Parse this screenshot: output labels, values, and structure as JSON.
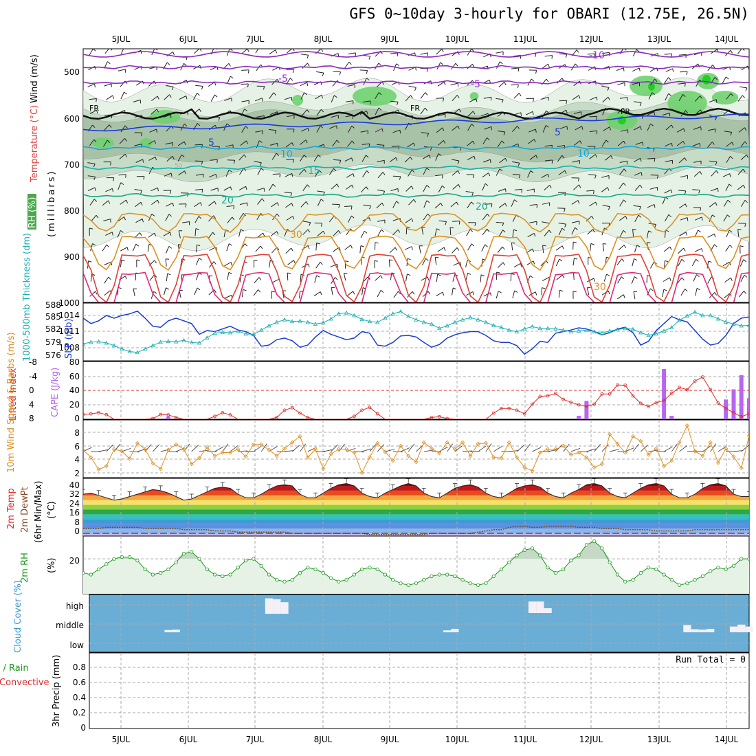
{
  "title": "GFS 0~10day 3-hourly for OBARI (12.75E, 26.5N)",
  "colors": {
    "red": "#e02828",
    "green": "#1a9a1a",
    "blue": "#1a3ad8",
    "cyan": "#17b0b0",
    "orange": "#e08f1e",
    "purple": "#9b30d8",
    "cloud": "#6aaed6"
  },
  "chart_data": [
    {
      "type": "contour",
      "title": "GFS 0~10day 3-hourly for OBARI (12.75E, 26.5N)",
      "xlabel": "Date",
      "x_categories": [
        "5JUL",
        "6JUL",
        "7JUL",
        "8JUL",
        "9JUL",
        "10JUL",
        "11JUL",
        "12JUL",
        "13JUL",
        "14JUL"
      ],
      "ylabel_parts": [
        "Wind (m/s)",
        "Temperature (°C)"
      ],
      "ylabel_unit": "(millibars)",
      "side_label": "RH (%)",
      "ylim": [
        1000,
        450
      ],
      "yticks": [
        500,
        600,
        700,
        800,
        900,
        1000
      ],
      "contour_labels": [
        "-10",
        "-5",
        "-5",
        "FR",
        "FR",
        "FR",
        "5",
        "5",
        "10",
        "10",
        "15",
        "20",
        "20",
        "30",
        "30",
        "50",
        "50",
        "50"
      ],
      "isotherms_c": [
        -10,
        -5,
        0,
        5,
        10,
        15,
        20,
        25,
        30,
        35,
        40
      ],
      "isotherm_base_mb": [
        523,
        490,
        595,
        625,
        665,
        708,
        768,
        815,
        870,
        915,
        960
      ]
    },
    {
      "type": "line",
      "ylabel_left": "1000-500mb Thickness (dm)",
      "ylabel_right": "SLP (mb)",
      "left_ticks": [
        "588",
        "585",
        "582",
        "579",
        "576"
      ],
      "right_ticks": [
        "1014",
        "1011",
        "1008"
      ],
      "series": [
        {
          "name": "SLP (mb)",
          "values": [
            1013.5,
            1012.5,
            1013,
            1014,
            1013.5,
            1014,
            1014.3,
            1014.8,
            1013.5,
            1012,
            1011.8,
            1013,
            1013.5,
            1013,
            1012.5,
            1010.5,
            1011.2,
            1011,
            1011.5,
            1012,
            1011.3,
            1011,
            1010.3,
            1008.3,
            1008.5,
            1009.5,
            1009.8,
            1009.3,
            1008.1,
            1008.5,
            1010,
            1011.2,
            1010.5,
            1010,
            1009.5,
            1009.8,
            1011,
            1010.7,
            1008.5,
            1008.3,
            1009,
            1010.2,
            1010.3,
            1010,
            1009,
            1008.1,
            1008.6,
            1009.8,
            1010.4,
            1010.8,
            1011,
            1011,
            1010.3,
            1009.3,
            1009,
            1009,
            1008.4,
            1006.8,
            1007.8,
            1009.2,
            1009,
            1010.7,
            1011,
            1011.3,
            1011.7,
            1011.5,
            1011,
            1010.4,
            1010.8,
            1011.5,
            1011.8,
            1010.8,
            1008.5,
            1009.2,
            1011.2,
            1012.5,
            1013.8,
            1013.2,
            1012.8,
            1011.2,
            1009.6,
            1008.5,
            1008.8,
            1010.3,
            1012.5,
            1013.5,
            1013.7
          ]
        },
        {
          "name": "1000-500mb Thickness (dm)",
          "values": [
            579.0,
            579.4,
            579.5,
            579.2,
            578.6,
            577.8,
            577.2,
            577.0,
            577.8,
            578.6,
            579.4,
            579.6,
            579.5,
            579.8,
            579.3,
            579.2,
            580.4,
            581.5,
            581.7,
            581.6,
            582.0,
            581.3,
            581.2,
            582.2,
            583.2,
            584.0,
            584.6,
            584.2,
            584.3,
            584.0,
            583.6,
            583.9,
            584.8,
            586.0,
            586.2,
            585.6,
            584.7,
            584.2,
            584.0,
            585.0,
            586.0,
            586.5,
            585.4,
            584.6,
            584.0,
            583.6,
            582.6,
            583.2,
            584.0,
            584.6,
            585.1,
            584.6,
            584.0,
            583.3,
            582.8,
            582.2,
            581.8,
            582.5,
            583.0,
            582.6,
            582.6,
            582.5,
            582.2,
            581.8,
            582.0,
            582.2,
            581.8,
            581.5,
            582.0,
            582.3,
            582.6,
            582.4,
            581.6,
            581.0,
            581.3,
            582.0,
            582.8,
            584.5,
            585.5,
            586.4,
            585.6,
            585.6,
            584.8,
            584.1,
            583.6,
            583.2,
            583.3
          ]
        }
      ]
    },
    {
      "type": "bar+line",
      "ylabel_left": "Lifted Index",
      "ylabel_right": "CAPE (J/kg)",
      "left_ticks": [
        "-8",
        "-4",
        "0",
        "4",
        "8"
      ],
      "right_ticks": [
        "80",
        "60",
        "40",
        "20",
        "0"
      ],
      "series": [
        {
          "name": "Lifted Index",
          "values": [
            6.7,
            6.5,
            6.2,
            6.7,
            8,
            8,
            8,
            8,
            8,
            7.8,
            6.7,
            6.8,
            7.5,
            8,
            8,
            8,
            8,
            7.2,
            6.2,
            6.8,
            8,
            8,
            8,
            8,
            8,
            7.5,
            5.5,
            4.8,
            6.3,
            7.5,
            8,
            8,
            8,
            8,
            8,
            7.2,
            5.5,
            4.7,
            6.5,
            8,
            8,
            8,
            8,
            8,
            8,
            7.5,
            7.3,
            7.8,
            8,
            8,
            8,
            8,
            8,
            6.3,
            5,
            5,
            5.5,
            6.5,
            3.8,
            1.7,
            1.5,
            0.9,
            2.5,
            3.3,
            4,
            4.5,
            3.8,
            1,
            1,
            -1.5,
            -1.4,
            1.5,
            3.6,
            4.5,
            3.4,
            2.8,
            0.8,
            -0.8,
            -0.2,
            -2.6,
            -3.7,
            -0.2,
            3.5,
            5,
            6.2,
            7.3,
            6.5
          ]
        },
        {
          "name": "CAPE (J/kg)",
          "values": [
            0,
            0,
            0,
            0,
            0,
            0,
            0,
            0,
            0,
            0,
            0,
            4,
            0,
            0,
            0,
            0,
            0,
            0,
            0,
            0,
            0,
            0,
            0,
            0,
            0,
            0,
            0,
            0,
            0,
            0,
            0,
            0,
            0,
            0,
            0,
            0,
            0,
            0,
            0,
            0,
            0,
            0,
            0,
            0,
            0,
            0,
            0,
            0,
            0,
            0,
            0,
            0,
            0,
            0,
            0,
            0,
            0,
            0,
            0,
            0,
            0,
            0,
            0,
            0,
            5,
            27,
            0,
            0,
            0,
            0,
            0,
            0,
            0,
            0,
            0,
            74,
            5,
            0,
            0,
            0,
            0,
            0,
            0,
            29,
            44,
            65,
            31
          ]
        }
      ]
    },
    {
      "type": "line",
      "ylabel": "10m Wind Speed & Barbs (m/s)",
      "yticks": [
        "8",
        "6",
        "4",
        "2"
      ],
      "series": [
        {
          "name": "10m Wind Speed (m/s)",
          "values": [
            5.4,
            4.3,
            2.5,
            3.0,
            5.5,
            5.2,
            4.1,
            6.4,
            5.5,
            3.4,
            2.6,
            5.4,
            6.2,
            5.5,
            3.3,
            4.2,
            5.8,
            4.5,
            5.0,
            5.0,
            5.5,
            4.4,
            6.2,
            6.2,
            5.4,
            4.5,
            5.6,
            6.5,
            7.4,
            4.3,
            5.5,
            2.6,
            4.8,
            5.5,
            5.5,
            5.0,
            2.0,
            4.3,
            6.4,
            5.1,
            3.8,
            6.0,
            4.5,
            3.6,
            6.5,
            5.6,
            4.9,
            6.5,
            5.5,
            6.5,
            4.5,
            6.3,
            6.4,
            4.3,
            4.2,
            6.5,
            4.3,
            2.8,
            2.3,
            5.0,
            5.5,
            5.5,
            6.0,
            4.7,
            5.0,
            4.3,
            2.8,
            3.3,
            7.7,
            6.3,
            5.0,
            7.4,
            6.7,
            4.7,
            5.6,
            3.0,
            3.8,
            6.5,
            9.0,
            5.2,
            4.5,
            6.5,
            3.5,
            5.6,
            4.4,
            2.7,
            7.5
          ]
        }
      ]
    },
    {
      "type": "area",
      "ylabel_parts": [
        "2m Temp",
        "2m DewPt",
        "(6hr Min/Max)"
      ],
      "unit": "(°C)",
      "yticks": [
        "40",
        "32",
        "24",
        "16",
        "8",
        "0"
      ],
      "series": [
        {
          "name": "2m Temp (°C)",
          "values": [
            33,
            34,
            32,
            30,
            28,
            29,
            31,
            33,
            35,
            37,
            36,
            34,
            31,
            28,
            29,
            32,
            35,
            38,
            39,
            38,
            33,
            30,
            30,
            33,
            37,
            40,
            41,
            40,
            33,
            30,
            30,
            34,
            38,
            41,
            42,
            40,
            34,
            31,
            30,
            34,
            37,
            40,
            42,
            40,
            34,
            31,
            30,
            34,
            38,
            40,
            41,
            39,
            34,
            31,
            30,
            34,
            38,
            40,
            41,
            39,
            34,
            31,
            30,
            34,
            37,
            41,
            42,
            40,
            34,
            31,
            30,
            34,
            38,
            41,
            42,
            40,
            33,
            30,
            30,
            33,
            38,
            41,
            42,
            40,
            33,
            31,
            31
          ]
        },
        {
          "name": "2m DewPt (°C)",
          "values": [
            4,
            4,
            4,
            5,
            5,
            5,
            5,
            5,
            4,
            4,
            4,
            4,
            4,
            3,
            3,
            3,
            3,
            2,
            2,
            2,
            1,
            1,
            1,
            1,
            1,
            1,
            1,
            0,
            0,
            0,
            0,
            0,
            0,
            0,
            0,
            0,
            0,
            -1,
            -1,
            -1,
            -1,
            -1,
            -1,
            -1,
            -1,
            0,
            0,
            0,
            0,
            0,
            0,
            1,
            2,
            3,
            3,
            5,
            6,
            6,
            5,
            5,
            6,
            6,
            6,
            6,
            5,
            5,
            5,
            4,
            4,
            4,
            3,
            3,
            3,
            3,
            2,
            2,
            2,
            2,
            2,
            3,
            3,
            3,
            3,
            3,
            3,
            3,
            3
          ]
        }
      ]
    },
    {
      "type": "area",
      "ylabel": "2m RH",
      "unit": "(%)",
      "yticks": [
        "20"
      ],
      "series": [
        {
          "name": "2m RH (%)",
          "values": [
            12,
            11,
            14,
            17,
            20,
            21,
            21,
            19,
            14,
            11,
            12,
            14,
            18,
            23,
            24,
            20,
            14,
            11,
            10,
            11,
            15,
            19,
            20,
            16,
            11,
            8,
            7,
            8,
            12,
            15,
            14,
            12,
            9,
            7,
            8,
            11,
            14,
            15,
            14,
            11,
            8,
            6,
            5,
            6,
            8,
            10,
            11,
            11,
            10,
            8,
            6,
            5,
            6,
            10,
            14,
            18,
            22,
            25,
            26,
            22,
            15,
            12,
            14,
            19,
            22,
            28,
            30,
            26,
            18,
            11,
            7,
            8,
            12,
            15,
            14,
            11,
            8,
            5,
            6,
            8,
            10,
            13,
            15,
            14,
            16,
            20,
            20
          ]
        }
      ]
    },
    {
      "type": "bar",
      "ylabel": "Cloud Cover (%)",
      "yticks": [
        "high",
        "middle",
        "low"
      ],
      "series": [
        {
          "name": "high cloud",
          "values": [
            0,
            0,
            0,
            0,
            0,
            0,
            0,
            0,
            0,
            0,
            0,
            0,
            0,
            0,
            0,
            0,
            0,
            0,
            0,
            0,
            0,
            0,
            0,
            0,
            80,
            75,
            60,
            0,
            0,
            0,
            0,
            0,
            0,
            0,
            0,
            0,
            0,
            0,
            0,
            0,
            0,
            0,
            0,
            0,
            0,
            0,
            0,
            0,
            0,
            0,
            0,
            0,
            0,
            0,
            0,
            0,
            0,
            0,
            0,
            0,
            0,
            0,
            0,
            0,
            0,
            0,
            0,
            0,
            0,
            0,
            0,
            0,
            0,
            0,
            0,
            0,
            0,
            0,
            0,
            0,
            0,
            0,
            0,
            0,
            0,
            0,
            0
          ]
        },
        {
          "name": "middle cloud",
          "values": [
            0,
            0,
            0,
            0,
            0,
            0,
            0,
            0,
            0,
            0,
            0,
            12,
            14,
            0,
            0,
            0,
            0,
            0,
            0,
            0,
            0,
            0,
            0,
            0,
            0,
            0,
            0,
            0,
            0,
            0,
            0,
            0,
            0,
            0,
            0,
            0,
            0,
            0,
            0,
            0,
            0,
            0,
            0,
            0,
            0,
            0,
            0,
            0,
            0,
            0,
            0,
            0,
            0,
            0,
            0,
            0,
            0,
            0,
            0,
            0,
            0,
            0,
            0,
            0,
            0,
            0,
            0,
            0,
            0,
            0,
            0,
            0,
            0,
            0,
            0,
            0,
            0,
            0,
            0,
            0,
            0,
            0,
            0,
            0,
            0,
            0,
            0
          ]
        }
      ]
    },
    {
      "type": "bar",
      "ylabel": "3hr Precip (mm)",
      "side_label": "Total / Rain",
      "side_label2": "Convective",
      "annotation": "Run Total = 0",
      "yticks": [
        "0.8",
        "0.6",
        "0.4",
        "0.2",
        "0"
      ],
      "series": [
        {
          "name": "3hr Precip (mm)",
          "values": []
        }
      ]
    }
  ]
}
